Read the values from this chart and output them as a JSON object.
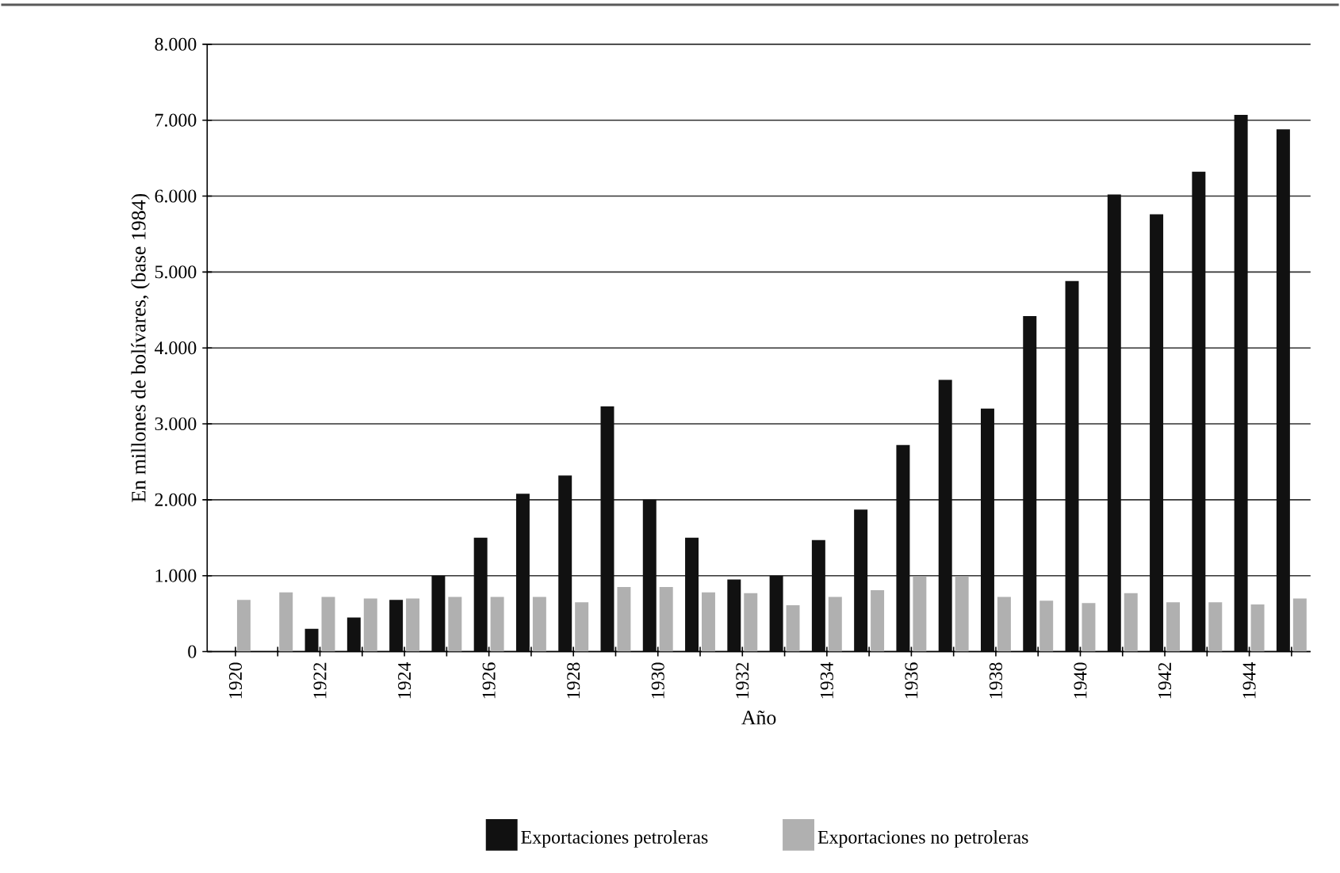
{
  "chart_data": {
    "type": "bar",
    "xlabel": "Año",
    "ylabel": "En millones de bolívares, (base 1984)",
    "categories": [
      "1920",
      null,
      "1922",
      null,
      "1924",
      null,
      "1926",
      null,
      "1928",
      null,
      "1930",
      null,
      "1932",
      null,
      "1934",
      null,
      "1936",
      null,
      "1938",
      null,
      "1940",
      null,
      "1942",
      null,
      "1944",
      null
    ],
    "series": [
      {
        "name": "Exportaciones petroleras",
        "color": "#111111",
        "values": [
          null,
          null,
          300,
          450,
          680,
          1000,
          1500,
          2080,
          2320,
          3230,
          2000,
          1500,
          950,
          1000,
          1470,
          1870,
          2720,
          3580,
          3200,
          4420,
          4880,
          6020,
          5760,
          6320,
          7070,
          6880
        ]
      },
      {
        "name": "Exportaciones no petroleras",
        "color": "#b0b0b0",
        "values": [
          680,
          780,
          720,
          700,
          700,
          720,
          720,
          720,
          650,
          850,
          850,
          780,
          770,
          610,
          720,
          810,
          990,
          990,
          720,
          670,
          640,
          770,
          650,
          650,
          620,
          700
        ]
      }
    ],
    "ylim": [
      0,
      8000
    ],
    "yticks": [
      0,
      {
        "value": 1000,
        "label": "1.000"
      },
      {
        "value": 2000,
        "label": "2.000"
      },
      {
        "value": 3000,
        "label": "3.000"
      },
      {
        "value": 4000,
        "label": "4.000"
      },
      {
        "value": 5000,
        "label": "5.000"
      },
      {
        "value": 6000,
        "label": "6.000"
      },
      {
        "value": 7000,
        "label": "7.000"
      },
      {
        "value": 8000,
        "label": "8.000"
      }
    ],
    "grid": "y",
    "legend": "bottom"
  }
}
